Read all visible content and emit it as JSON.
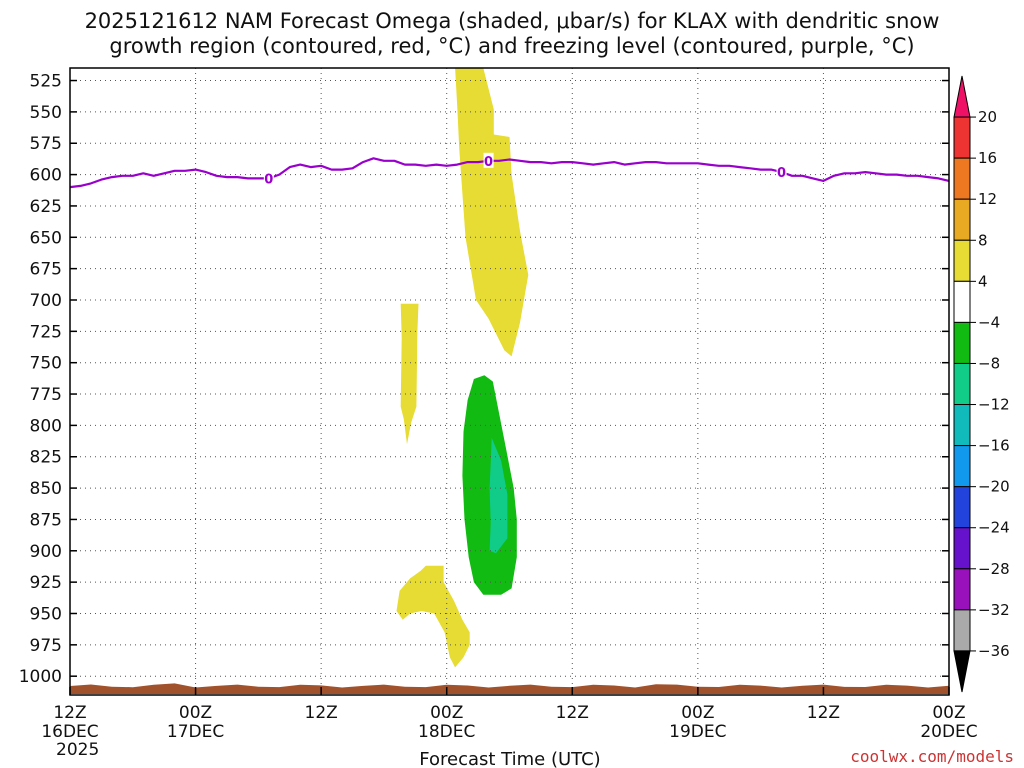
{
  "chart_data": {
    "type": "heatmap",
    "title_line1": "2025121612 NAM Forecast Omega (shaded, μbar/s) for KLAX with dendritic snow",
    "title_line2": "growth region (contoured, red, °C) and freezing level (contoured, purple, °C)",
    "xlabel": "Forecast Time (UTC)",
    "credit": "coolwx.com/models",
    "xlim": [
      0,
      84
    ],
    "ylim": [
      1015,
      515
    ],
    "yticks": [
      525,
      550,
      575,
      600,
      625,
      650,
      675,
      700,
      725,
      750,
      775,
      800,
      825,
      850,
      875,
      900,
      925,
      950,
      975,
      1000
    ],
    "xticks": [
      {
        "hour": 0,
        "line1": "12Z",
        "line2": "16DEC",
        "line3": "2025"
      },
      {
        "hour": 12,
        "line1": "00Z",
        "line2": "17DEC",
        "line3": ""
      },
      {
        "hour": 24,
        "line1": "12Z",
        "line2": "",
        "line3": ""
      },
      {
        "hour": 36,
        "line1": "00Z",
        "line2": "18DEC",
        "line3": ""
      },
      {
        "hour": 48,
        "line1": "12Z",
        "line2": "",
        "line3": ""
      },
      {
        "hour": 60,
        "line1": "00Z",
        "line2": "19DEC",
        "line3": ""
      },
      {
        "hour": 72,
        "line1": "12Z",
        "line2": "",
        "line3": ""
      },
      {
        "hour": 84,
        "line1": "00Z",
        "line2": "20DEC",
        "line3": ""
      }
    ],
    "colorbar": {
      "labels": [
        "20",
        "16",
        "12",
        "8",
        "4",
        "−4",
        "−8",
        "−12",
        "−16",
        "−20",
        "−24",
        "−28",
        "−32",
        "−36"
      ],
      "colors": [
        "#ee1166",
        "#ee3333",
        "#ee7722",
        "#e8aa22",
        "#e6dc33",
        "#ffffff",
        "#11bb11",
        "#11cc88",
        "#11bbbb",
        "#1199ee",
        "#2244dd",
        "#6611cc",
        "#9911bb",
        "#aaaaaa",
        "#000000"
      ]
    },
    "freezing_level": {
      "name": "freezing level (0°C)",
      "label": "0",
      "color": "#9900cc",
      "hours": [
        0,
        1,
        2,
        3,
        4,
        5,
        6,
        7,
        8,
        9,
        10,
        11,
        12,
        13,
        14,
        15,
        16,
        17,
        18,
        19,
        20,
        21,
        22,
        23,
        24,
        25,
        26,
        27,
        28,
        29,
        30,
        31,
        32,
        33,
        34,
        35,
        36,
        37,
        38,
        39,
        40,
        41,
        42,
        43,
        44,
        45,
        46,
        47,
        48,
        49,
        50,
        51,
        52,
        53,
        54,
        55,
        56,
        57,
        58,
        59,
        60,
        61,
        62,
        63,
        64,
        65,
        66,
        67,
        68,
        69,
        70,
        71,
        72,
        73,
        74,
        75,
        76,
        77,
        78,
        79,
        80,
        81,
        82,
        83,
        84
      ],
      "values": [
        610,
        609,
        607,
        604,
        602,
        601,
        601,
        599,
        601,
        599,
        597,
        597,
        596,
        598,
        601,
        602,
        602,
        603,
        603,
        603,
        600,
        594,
        592,
        594,
        593,
        596,
        596,
        595,
        590,
        587,
        589,
        589,
        592,
        592,
        593,
        592,
        593,
        592,
        590,
        590,
        589,
        589,
        588,
        589,
        590,
        590,
        591,
        590,
        590,
        591,
        592,
        591,
        590,
        592,
        591,
        590,
        590,
        591,
        591,
        591,
        591,
        592,
        593,
        593,
        594,
        595,
        596,
        596,
        598,
        601,
        601,
        603,
        605,
        601,
        599,
        599,
        598,
        599,
        600,
        600,
        601,
        601,
        602,
        603,
        605
      ]
    },
    "omega_regions": [
      {
        "name": "positive 4-8 upper column",
        "range": "4 to 8",
        "color": "#e6dc33",
        "points": [
          [
            36.8,
            515
          ],
          [
            39.5,
            515
          ],
          [
            40.5,
            548
          ],
          [
            40.5,
            568
          ],
          [
            42,
            570
          ],
          [
            42.2,
            600
          ],
          [
            43,
            645
          ],
          [
            43.8,
            680
          ],
          [
            43,
            718
          ],
          [
            42.2,
            745
          ],
          [
            41.5,
            740
          ],
          [
            40,
            715
          ],
          [
            38.8,
            700
          ],
          [
            37.8,
            650
          ],
          [
            37.2,
            580
          ],
          [
            37,
            545
          ]
        ]
      },
      {
        "name": "positive 4-8 thin column",
        "range": "4 to 8",
        "color": "#e6dc33",
        "points": [
          [
            31.6,
            703
          ],
          [
            33.3,
            703
          ],
          [
            33.2,
            725
          ],
          [
            33.1,
            785
          ],
          [
            32.6,
            798
          ],
          [
            32.2,
            815
          ],
          [
            31.9,
            795
          ],
          [
            31.6,
            785
          ],
          [
            31.7,
            730
          ]
        ]
      },
      {
        "name": "positive 4-8 low-level blob",
        "range": "4 to 8",
        "color": "#e6dc33",
        "points": [
          [
            31.5,
            932
          ],
          [
            32.5,
            922
          ],
          [
            33.5,
            916
          ],
          [
            34,
            912
          ],
          [
            35.7,
            912
          ],
          [
            35.7,
            925
          ],
          [
            36.7,
            940
          ],
          [
            37.5,
            955
          ],
          [
            38.2,
            965
          ],
          [
            38.2,
            975
          ],
          [
            37.6,
            985
          ],
          [
            36.8,
            993
          ],
          [
            36.3,
            985
          ],
          [
            35.8,
            965
          ],
          [
            34.8,
            950
          ],
          [
            33.6,
            948
          ],
          [
            32.5,
            950
          ],
          [
            31.8,
            955
          ],
          [
            31.2,
            948
          ]
        ]
      },
      {
        "name": "negative -4 to -8",
        "range": "-4 to -8",
        "color": "#11bb11",
        "points": [
          [
            38.6,
            763
          ],
          [
            39.6,
            760
          ],
          [
            40.4,
            765
          ],
          [
            41,
            790
          ],
          [
            41.7,
            820
          ],
          [
            42.4,
            850
          ],
          [
            42.7,
            875
          ],
          [
            42.7,
            905
          ],
          [
            42.2,
            930
          ],
          [
            41.2,
            935
          ],
          [
            39.5,
            935
          ],
          [
            38.6,
            925
          ],
          [
            38.1,
            905
          ],
          [
            37.7,
            875
          ],
          [
            37.5,
            840
          ],
          [
            37.6,
            805
          ],
          [
            38,
            780
          ]
        ]
      },
      {
        "name": "negative -8 to -12",
        "range": "-8 to -12",
        "color": "#11cc88",
        "points": [
          [
            40.3,
            810
          ],
          [
            41.2,
            828
          ],
          [
            41.8,
            855
          ],
          [
            41.8,
            890
          ],
          [
            40.7,
            902
          ],
          [
            40.1,
            900
          ],
          [
            40.2,
            878
          ],
          [
            40.1,
            850
          ],
          [
            40.2,
            830
          ]
        ]
      }
    ],
    "surface_fill": {
      "name": "below ground",
      "color": "#a0522d"
    }
  }
}
